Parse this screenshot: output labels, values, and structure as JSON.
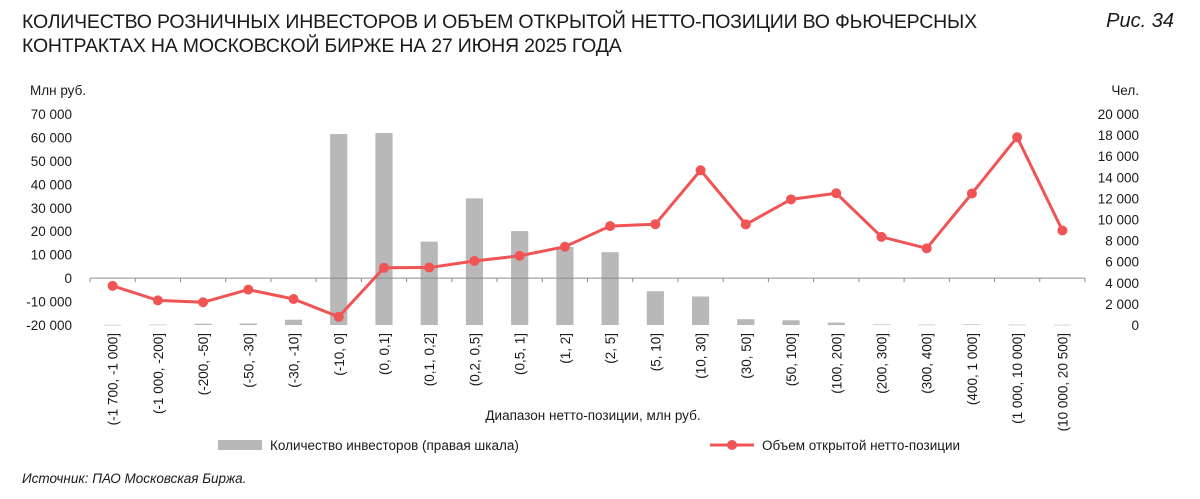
{
  "title": "КОЛИЧЕСТВО РОЗНИЧНЫХ ИНВЕСТОРОВ И ОБЪЕМ ОТКРЫТОЙ НЕТТО-ПОЗИЦИИ ВО ФЬЮЧЕРСНЫХ КОНТРАКТАХ НА МОСКОВСКОЙ БИРЖЕ НА 27 ИЮНЯ 2025 ГОДА",
  "figure_label": "Рис. 34",
  "source": "Источник: ПАО Московская Биржа.",
  "colors": {
    "bars": "#b8b8b8",
    "line": "#f05454"
  },
  "chart_data": {
    "type": "bar+line",
    "xlabel": "Диапазон нетто-позиции, млн руб.",
    "ylabel_left": "Млн руб.",
    "ylabel_right": "Чел.",
    "ylim_left": [
      -20000,
      70000
    ],
    "ylim_right": [
      0,
      20000
    ],
    "yticks_left": [
      "70 000",
      "60 000",
      "50 000",
      "40 000",
      "30 000",
      "20 000",
      "10 000",
      "0",
      "-10 000",
      "-20 000"
    ],
    "yticks_right": [
      "20 000",
      "18 000",
      "16 000",
      "14 000",
      "12 000",
      "10 000",
      "8 000",
      "6 000",
      "4 000",
      "2 000",
      "0"
    ],
    "categories": [
      "(-1 700, -1 000]",
      "(-1 000, -200]",
      "(-200, -50]",
      "(-50, -30]",
      "(-30, -10]",
      "(-10, 0]",
      "(0, 0,1]",
      "(0,1, 0,2]",
      "(0,2, 0,5]",
      "(0,5, 1]",
      "(1, 2]",
      "(2, 5]",
      "(5, 10]",
      "(10, 30]",
      "(30, 50]",
      "(50, 100]",
      "(100, 200]",
      "(200, 300]",
      "(300, 400]",
      "(400, 1 000]",
      "(1 000, 10 000]",
      "(10 000, 20 500]"
    ],
    "series": [
      {
        "name": "Количество инвесторов (правая шкала)",
        "kind": "bar",
        "axis": "right",
        "values": [
          20,
          40,
          120,
          150,
          500,
          18100,
          18200,
          7900,
          12000,
          8900,
          7400,
          6900,
          3200,
          2700,
          550,
          450,
          230,
          50,
          40,
          60,
          30,
          25
        ]
      },
      {
        "name": "Объем открытой нетто-позиции",
        "kind": "line",
        "axis": "left",
        "values": [
          -3300,
          -9500,
          -10300,
          -4900,
          -8900,
          -16500,
          4400,
          4500,
          7300,
          9500,
          13400,
          22200,
          23000,
          46000,
          22900,
          33600,
          36200,
          17600,
          12700,
          36100,
          60100,
          20300
        ]
      }
    ],
    "legend": "bottom"
  }
}
